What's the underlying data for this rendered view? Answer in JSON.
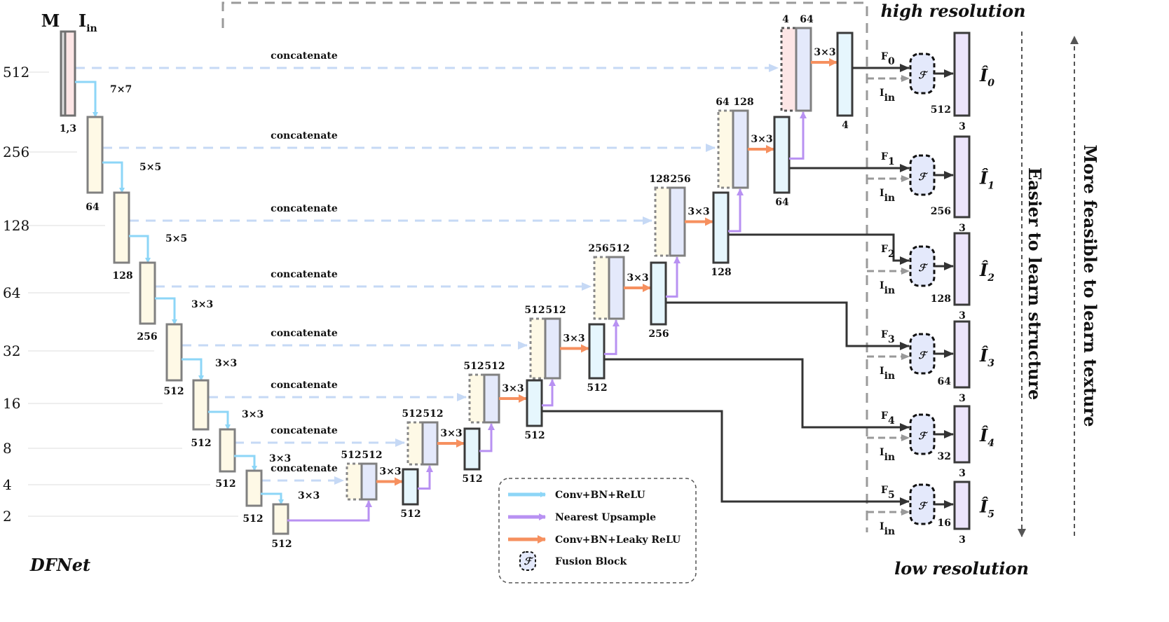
{
  "title": "DFNet",
  "inputs": {
    "mask": "M",
    "image": "I",
    "image_sub": "in",
    "channels": "1,3"
  },
  "scales": [
    "512",
    "256",
    "128",
    "64",
    "32",
    "16",
    "8",
    "4",
    "2"
  ],
  "encoder": {
    "channels": [
      "64",
      "128",
      "256",
      "512",
      "512",
      "512",
      "512",
      "512"
    ],
    "kernels": [
      "7×7",
      "5×5",
      "5×5",
      "3×3",
      "3×3",
      "3×3",
      "3×3",
      "3×3"
    ]
  },
  "concat_label": "concatenate",
  "decoder": {
    "concat_channels": [
      [
        "512",
        "512"
      ],
      [
        "512",
        "512"
      ],
      [
        "512",
        "512"
      ],
      [
        "512",
        "512"
      ],
      [
        "256",
        "512"
      ],
      [
        "128",
        "256"
      ],
      [
        "64",
        "128"
      ],
      [
        "4",
        "64"
      ]
    ],
    "out_channels": [
      "512",
      "512",
      "512",
      "512",
      "256",
      "128",
      "64",
      "4"
    ],
    "kernel": "3×3"
  },
  "fusion": {
    "symbol": "ℱ",
    "feature_labels": [
      "F",
      "F",
      "F",
      "F",
      "F",
      "F"
    ],
    "feature_subs": [
      "0",
      "1",
      "2",
      "3",
      "4",
      "5"
    ],
    "input_label": "I",
    "input_sub": "in",
    "output_label": "Î",
    "output_subs": [
      "0",
      "1",
      "2",
      "3",
      "4",
      "5"
    ],
    "output_sizes": [
      "512",
      "256",
      "128",
      "64",
      "32",
      "16"
    ],
    "output_channels": [
      "3",
      "3",
      "3",
      "3",
      "3",
      "3"
    ]
  },
  "side_labels": {
    "top": "high resolution",
    "bottom": "low resolution",
    "structure": "Easier to learn structure",
    "texture": "More feasible to learn texture"
  },
  "legend": [
    {
      "label": "Conv+BN+ReLU",
      "kind": "arrow",
      "color": "#8dd6f7"
    },
    {
      "label": "Nearest Upsample",
      "kind": "arrow",
      "color": "#b891f2"
    },
    {
      "label": "Conv+BN+Leaky ReLU",
      "kind": "arrow",
      "color": "#f6905f"
    },
    {
      "label": "Fusion Block",
      "kind": "fusion",
      "color": "#e4e9fb"
    }
  ],
  "colors": {
    "encoder_fill": "#fef9e6",
    "mask_fill": "#fde6e6",
    "concat_fill": "#e4e9fb",
    "conv_fill": "#e6f6fd",
    "output_fill": "#ece4fb",
    "skip_line": "#c6d9f5",
    "conv_relu": "#8dd6f7",
    "upsample": "#b891f2",
    "leaky": "#f6905f"
  }
}
